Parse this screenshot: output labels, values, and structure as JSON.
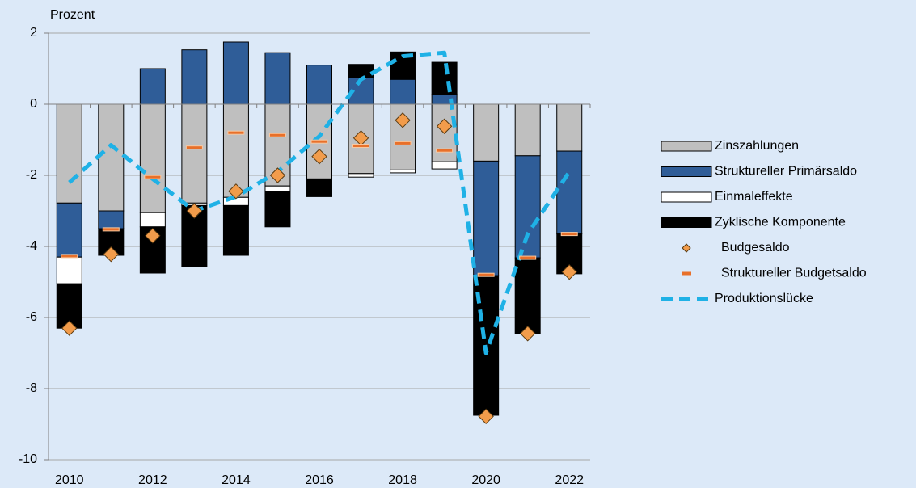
{
  "chart_data": {
    "type": "bar",
    "y_label": "Prozent",
    "categories": [
      "2010",
      null,
      "2012",
      null,
      "2014",
      null,
      "2016",
      null,
      "2018",
      null,
      "2020",
      null,
      "2022"
    ],
    "ylim": [
      -10,
      2
    ],
    "yticks": [
      -10,
      -8,
      -6,
      -4,
      -2,
      0,
      2
    ],
    "grid": true,
    "series": [
      {
        "name": "Zinszahlungen",
        "color": "#bfbfbf",
        "values": [
          -2.78,
          -3.0,
          -3.05,
          -2.78,
          -2.62,
          -2.3,
          -2.1,
          -1.95,
          -1.85,
          -1.62,
          -1.6,
          -1.45,
          -1.32
        ]
      },
      {
        "name": "Struktureller Primärsaldo",
        "color": "#2f5d98",
        "values": [
          -1.52,
          -0.5,
          1.0,
          1.53,
          1.75,
          1.45,
          1.1,
          0.75,
          0.7,
          0.28,
          -3.22,
          -2.87,
          -2.33
        ]
      },
      {
        "name": "Einmaleffekte",
        "color": "#ffffff",
        "values": [
          -0.75,
          0,
          -0.4,
          -0.07,
          -0.23,
          -0.15,
          0,
          -0.1,
          -0.08,
          -0.2,
          0,
          0,
          0
        ]
      },
      {
        "name": "Zyklische Komponente",
        "color": "#000000",
        "values": [
          -1.25,
          -0.75,
          -1.3,
          -1.72,
          -1.4,
          -1.0,
          -0.5,
          0.37,
          0.77,
          0.9,
          -3.93,
          -2.13,
          -1.12
        ]
      },
      {
        "name": "Budgesaldo",
        "type": "marker",
        "color": "#f29c4b",
        "values": [
          -6.3,
          -4.22,
          -3.7,
          -3.0,
          -2.45,
          -2.0,
          -1.47,
          -0.95,
          -0.45,
          -0.62,
          -8.78,
          -6.45,
          -4.72
        ]
      },
      {
        "name": "Struktureller Budgetsaldo",
        "type": "dash",
        "color": "#e8702a",
        "values": [
          -4.27,
          -3.52,
          -2.05,
          -1.22,
          -0.8,
          -0.87,
          -1.05,
          -1.17,
          -1.1,
          -1.3,
          -4.8,
          -4.32,
          -3.65
        ]
      },
      {
        "name": "Produktionslücke",
        "type": "line",
        "color": "#1fb1e6",
        "values": [
          -2.2,
          -1.15,
          -2.1,
          -3.0,
          -2.6,
          -1.9,
          -0.9,
          0.7,
          1.35,
          1.45,
          -7.0,
          -3.65,
          -1.9
        ]
      }
    ]
  }
}
